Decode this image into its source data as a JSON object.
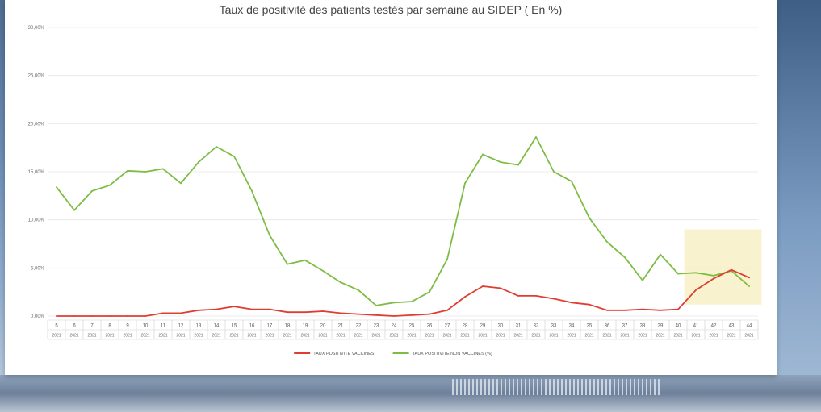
{
  "chart_data": {
    "type": "line",
    "title": "Taux de positivité des patients testés par semaine au SIDEP ( En %)",
    "xlabel": "",
    "ylabel": "",
    "ylim": [
      0,
      30
    ],
    "y_tick_values": [
      0,
      5,
      10,
      15,
      20,
      25,
      30
    ],
    "y_tick_labels": [
      "0,00%",
      "5,00%",
      "10,00%",
      "15,00%",
      "20,00%",
      "25,00%",
      "30,00%"
    ],
    "categories": [
      "5",
      "6",
      "7",
      "8",
      "9",
      "10",
      "11",
      "12",
      "13",
      "14",
      "15",
      "16",
      "17",
      "18",
      "19",
      "20",
      "21",
      "22",
      "23",
      "24",
      "25",
      "26",
      "27",
      "28",
      "29",
      "30",
      "31",
      "32",
      "33",
      "34",
      "35",
      "36",
      "37",
      "38",
      "39",
      "40",
      "41",
      "42",
      "43",
      "44"
    ],
    "year_label": "2021",
    "series": [
      {
        "name": "TAUX POSITIVITE VACCINES",
        "color": "#e03c31",
        "values": [
          0,
          0,
          0,
          0,
          0,
          0,
          0.3,
          0.3,
          0.6,
          0.7,
          1.0,
          0.7,
          0.7,
          0.4,
          0.4,
          0.5,
          0.3,
          0.2,
          0.1,
          0,
          0.1,
          0.2,
          0.6,
          2.0,
          3.1,
          2.9,
          2.1,
          2.1,
          1.8,
          1.4,
          1.2,
          0.6,
          0.6,
          0.7,
          0.6,
          0.7,
          2.7,
          3.9,
          4.8,
          4.0
        ]
      },
      {
        "name": "TAUX POSITIVITE NON VACCINES (%)",
        "color": "#7dbd44",
        "values": [
          13.4,
          11.0,
          13.0,
          13.6,
          15.1,
          15.0,
          15.3,
          13.8,
          16.0,
          17.6,
          16.6,
          13.0,
          8.4,
          5.4,
          5.8,
          4.7,
          3.5,
          2.7,
          1.1,
          1.4,
          1.5,
          2.5,
          5.9,
          13.8,
          16.8,
          16.0,
          15.7,
          18.6,
          15.0,
          14.0,
          10.2,
          7.7,
          6.1,
          3.7,
          6.4,
          4.4,
          4.5,
          4.2,
          4.7,
          3.1
        ]
      }
    ],
    "highlight_box": {
      "from_category": "41",
      "to_category": "44",
      "y_from": 1.2,
      "y_to": 9.0,
      "color": "#f2e7a8"
    },
    "grid": true,
    "legend": "bottom"
  }
}
